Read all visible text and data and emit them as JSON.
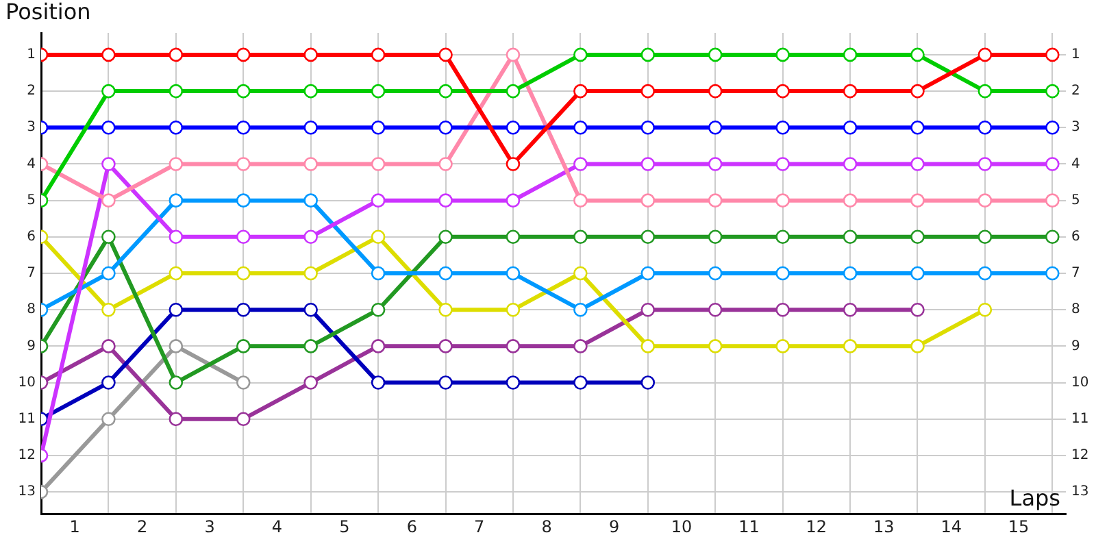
{
  "chart_data": {
    "type": "line",
    "xlabel": "Laps",
    "ylabel": "Position",
    "x": [
      0,
      1,
      2,
      3,
      4,
      5,
      6,
      7,
      8,
      9,
      10,
      11,
      12,
      13,
      14,
      15
    ],
    "series": [
      {
        "color": "#ff0000",
        "values": [
          1,
          1,
          1,
          1,
          1,
          1,
          1,
          4,
          2,
          2,
          2,
          2,
          2,
          2,
          1,
          1
        ]
      },
      {
        "color": "#00cc00",
        "values": [
          5,
          2,
          2,
          2,
          2,
          2,
          2,
          2,
          1,
          1,
          1,
          1,
          1,
          1,
          2,
          2
        ]
      },
      {
        "color": "#0000ff",
        "values": [
          3,
          3,
          3,
          3,
          3,
          3,
          3,
          3,
          3,
          3,
          3,
          3,
          3,
          3,
          3,
          3
        ]
      },
      {
        "color": "#ff88aa",
        "values": [
          4,
          5,
          4,
          4,
          4,
          4,
          4,
          1,
          5,
          5,
          5,
          5,
          5,
          5,
          5,
          5
        ]
      },
      {
        "color": "#cc33ff",
        "values": [
          12,
          4,
          6,
          6,
          6,
          5,
          5,
          5,
          4,
          4,
          4,
          4,
          4,
          4,
          4,
          4
        ]
      },
      {
        "color": "#0099ff",
        "values": [
          8,
          7,
          5,
          5,
          5,
          7,
          7,
          7,
          8,
          7,
          7,
          7,
          7,
          7,
          7,
          7
        ]
      },
      {
        "color": "#229922",
        "values": [
          9,
          6,
          10,
          9,
          9,
          8,
          6,
          6,
          6,
          6,
          6,
          6,
          6,
          6,
          6,
          6
        ]
      },
      {
        "color": "#dddd00",
        "values": [
          6,
          8,
          7,
          7,
          7,
          6,
          8,
          8,
          7,
          9,
          9,
          9,
          9,
          9,
          8,
          null
        ]
      },
      {
        "color": "#0000bb",
        "values": [
          11,
          10,
          8,
          8,
          8,
          10,
          10,
          10,
          10,
          10,
          null,
          null,
          null,
          null,
          null,
          null
        ]
      },
      {
        "color": "#993399",
        "values": [
          10,
          9,
          11,
          11,
          10,
          9,
          9,
          9,
          9,
          8,
          8,
          8,
          8,
          8,
          null,
          null
        ]
      },
      {
        "color": "#999999",
        "values": [
          13,
          11,
          9,
          10,
          null,
          null,
          null,
          null,
          null,
          null,
          null,
          null,
          null,
          null,
          null,
          null
        ]
      }
    ],
    "xlim": [
      0,
      15.2
    ],
    "xticks": [
      {
        "value": 0,
        "label": null
      },
      {
        "value": 0.5,
        "label": "1"
      },
      {
        "value": 1,
        "label": null
      },
      {
        "value": 1.5,
        "label": "2"
      },
      {
        "value": 2,
        "label": null
      },
      {
        "value": 2.5,
        "label": "3"
      },
      {
        "value": 3,
        "label": null
      },
      {
        "value": 3.5,
        "label": "4"
      },
      {
        "value": 4,
        "label": null
      },
      {
        "value": 4.5,
        "label": "5"
      },
      {
        "value": 5,
        "label": null
      },
      {
        "value": 5.5,
        "label": "6"
      },
      {
        "value": 6,
        "label": null
      },
      {
        "value": 6.5,
        "label": "7"
      },
      {
        "value": 7,
        "label": null
      },
      {
        "value": 7.5,
        "label": "8"
      },
      {
        "value": 8,
        "label": null
      },
      {
        "value": 8.5,
        "label": "9"
      },
      {
        "value": 9,
        "label": null
      },
      {
        "value": 9.5,
        "label": "10"
      },
      {
        "value": 10,
        "label": null
      },
      {
        "value": 10.5,
        "label": "11"
      },
      {
        "value": 11,
        "label": null
      },
      {
        "value": 11.5,
        "label": "12"
      },
      {
        "value": 12,
        "label": null
      },
      {
        "value": 12.5,
        "label": "13"
      },
      {
        "value": 13,
        "label": null
      },
      {
        "value": 13.5,
        "label": "14"
      },
      {
        "value": 14,
        "label": null
      },
      {
        "value": 14.5,
        "label": "15"
      },
      {
        "value": 15,
        "label": null
      }
    ],
    "ylim": [
      13.6,
      0.4
    ],
    "yticks": [
      1,
      2,
      3,
      4,
      5,
      6,
      7,
      8,
      9,
      10,
      11,
      12,
      13
    ],
    "y2lim": [
      13.6,
      0.4
    ],
    "y2ticks": [
      1,
      2,
      3,
      4,
      5,
      6,
      7,
      8,
      9,
      10,
      11,
      12,
      13
    ],
    "grid": true,
    "legend": false,
    "marker": "circle",
    "line_style": "solid"
  }
}
